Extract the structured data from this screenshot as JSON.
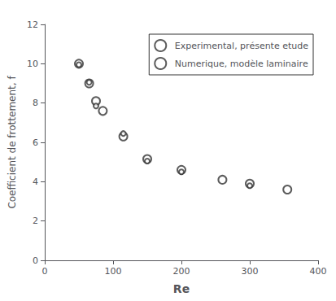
{
  "chart_data": {
    "type": "scatter",
    "xlabel": "Re",
    "ylabel": "Coefficient de frottement, f",
    "xlim": [
      0,
      400
    ],
    "ylim": [
      0,
      12
    ],
    "xticks": [
      0,
      100,
      200,
      300,
      400
    ],
    "yticks": [
      0,
      2,
      4,
      6,
      8,
      10,
      12
    ],
    "grid": false,
    "legend": "upper right",
    "series": [
      {
        "name": "Experimental, présente etude",
        "color": "#333333",
        "marker": "circle",
        "x": [
          50,
          65,
          75,
          85,
          115,
          150,
          200,
          260,
          300,
          355
        ],
        "values": [
          10.0,
          9.0,
          8.1,
          7.6,
          6.3,
          5.15,
          4.6,
          4.1,
          3.9,
          3.6
        ]
      },
      {
        "name": "Numerique, modèle laminaire",
        "color": "#333333",
        "marker": "circle",
        "x": [
          50,
          65,
          75,
          115,
          150,
          200,
          300
        ],
        "values": [
          9.95,
          9.05,
          7.85,
          6.45,
          5.05,
          4.5,
          3.8
        ]
      }
    ]
  }
}
